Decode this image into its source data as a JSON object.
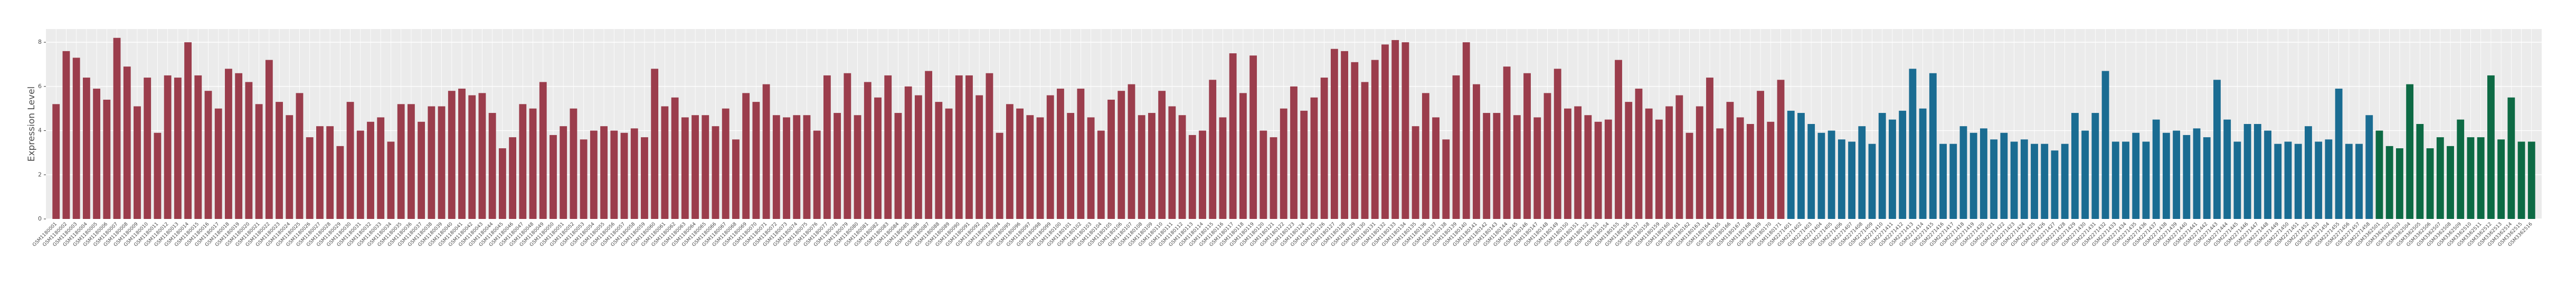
{
  "chart_data": {
    "type": "bar",
    "y_label": "Expression Level",
    "ylim": [
      0,
      8.6
    ],
    "yticks": [
      0,
      2,
      4,
      6,
      8
    ],
    "grid": true,
    "series": [
      {
        "color": "#9b3d4c",
        "categories": [
          "GSM1180001",
          "GSM1180002",
          "GSM1180003",
          "GSM1180004",
          "GSM1180005",
          "GSM1180006",
          "GSM1180007",
          "GSM1180008",
          "GSM1180009",
          "GSM1180010",
          "GSM1180011",
          "GSM1180012",
          "GSM1180013",
          "GSM1180014",
          "GSM1180015",
          "GSM1180016",
          "GSM1180017",
          "GSM1180018",
          "GSM1180019",
          "GSM1180020",
          "GSM1180021",
          "GSM1180022",
          "GSM1180023",
          "GSM1180024",
          "GSM1180025",
          "GSM1180026",
          "GSM1180027",
          "GSM1180028",
          "GSM1180029",
          "GSM1180030",
          "GSM1180031",
          "GSM1180032",
          "GSM1180033",
          "GSM1180034",
          "GSM1180035",
          "GSM1180036",
          "GSM1180037",
          "GSM1180038",
          "GSM1180039",
          "GSM1180040",
          "GSM1180041",
          "GSM1180042",
          "GSM1180043",
          "GSM1180044",
          "GSM1180045",
          "GSM1180046",
          "GSM1180047",
          "GSM1180048",
          "GSM1180049",
          "GSM1180050",
          "GSM1180051",
          "GSM1180052",
          "GSM1180053",
          "GSM1180054",
          "GSM1180055",
          "GSM1180056",
          "GSM1180057",
          "GSM1180058",
          "GSM1180059",
          "GSM1180060",
          "GSM1180061",
          "GSM1180062",
          "GSM1180063",
          "GSM1180064",
          "GSM1180065",
          "GSM1180066",
          "GSM1180067",
          "GSM1180068",
          "GSM1180069",
          "GSM1180070",
          "GSM1180071",
          "GSM1180072",
          "GSM1180073",
          "GSM1180074",
          "GSM1180075",
          "GSM1180076",
          "GSM1180077",
          "GSM1180078",
          "GSM1180079",
          "GSM1180080",
          "GSM1180081",
          "GSM1180082",
          "GSM1180083",
          "GSM1180084",
          "GSM1180085",
          "GSM1180086",
          "GSM1180087",
          "GSM1180088",
          "GSM1180089",
          "GSM1180090",
          "GSM1180091",
          "GSM1180092",
          "GSM1180093",
          "GSM1180094",
          "GSM1180095",
          "GSM1180096",
          "GSM1180097",
          "GSM1180098",
          "GSM1180099",
          "GSM1180100",
          "GSM1180101",
          "GSM1180102",
          "GSM1180103",
          "GSM1180104",
          "GSM1180105",
          "GSM1180106",
          "GSM1180107",
          "GSM1180108",
          "GSM1180109",
          "GSM1180110",
          "GSM1180111",
          "GSM1180112",
          "GSM1180113",
          "GSM1180114",
          "GSM1180115",
          "GSM1180116",
          "GSM1180117",
          "GSM1180118",
          "GSM1180119",
          "GSM1180120",
          "GSM1180121",
          "GSM1180122",
          "GSM1180123",
          "GSM1180124",
          "GSM1180125",
          "GSM1180126",
          "GSM1180127",
          "GSM1180128",
          "GSM1180129",
          "GSM1180130",
          "GSM1180131",
          "GSM1180132",
          "GSM1180133",
          "GSM1180134",
          "GSM1180135",
          "GSM1180136",
          "GSM1180137",
          "GSM1180138",
          "GSM1180139",
          "GSM1180140",
          "GSM1180141",
          "GSM1180142",
          "GSM1180143",
          "GSM1180144",
          "GSM1180145",
          "GSM1180146",
          "GSM1180147",
          "GSM1180148",
          "GSM1180149",
          "GSM1180150",
          "GSM1180151",
          "GSM1180152",
          "GSM1180153",
          "GSM1180154",
          "GSM1180155",
          "GSM1180156",
          "GSM1180157",
          "GSM1180158",
          "GSM1180159",
          "GSM1180160",
          "GSM1180161",
          "GSM1180162",
          "GSM1180163",
          "GSM1180164",
          "GSM1180165",
          "GSM1180166",
          "GSM1180167",
          "GSM1180168",
          "GSM1180169",
          "GSM1180170",
          "GSM1180171"
        ],
        "values": [
          5.2,
          7.6,
          7.3,
          6.4,
          5.9,
          5.4,
          8.2,
          6.9,
          5.1,
          6.4,
          3.9,
          6.5,
          6.4,
          8.0,
          6.5,
          5.8,
          5.0,
          6.8,
          6.6,
          6.2,
          5.2,
          7.2,
          5.3,
          4.7,
          5.7,
          3.7,
          4.2,
          4.2,
          3.3,
          5.3,
          4.0,
          4.4,
          4.6,
          3.5,
          5.2,
          5.2,
          4.4,
          5.1,
          5.1,
          5.8,
          5.9,
          5.6,
          5.7,
          4.8,
          3.2,
          3.7,
          5.2,
          5.0,
          6.2,
          3.8,
          4.2,
          5.0,
          3.6,
          4.0,
          4.2,
          4.0,
          3.9,
          4.1,
          3.7,
          6.8,
          5.1,
          5.5,
          4.6,
          4.7,
          4.7,
          4.2,
          5.0,
          3.6,
          5.7,
          5.3,
          6.1,
          4.7,
          4.6,
          4.7,
          4.7,
          4.0,
          6.5,
          4.8,
          6.6,
          4.7,
          6.2,
          5.5,
          6.5,
          4.8,
          6.0,
          5.6,
          6.7,
          5.3,
          5.0,
          6.5,
          6.5,
          5.6,
          6.6,
          3.9,
          5.2,
          5.0,
          4.7,
          4.6,
          5.6,
          5.9,
          4.8,
          5.9,
          4.6,
          4.0,
          5.4,
          5.8,
          6.1,
          4.7,
          4.8,
          5.8,
          5.1,
          4.7,
          3.8,
          4.0,
          6.3,
          4.6,
          7.5,
          5.7,
          7.4,
          4.0,
          3.7,
          5.0,
          6.0,
          4.9,
          5.5,
          6.4,
          7.7,
          7.6,
          7.1,
          6.2,
          7.2,
          7.9,
          8.1,
          8.0,
          4.2,
          5.7,
          4.6,
          3.6,
          6.5,
          8.0,
          6.1,
          4.8,
          4.8,
          6.9,
          4.7,
          6.6,
          4.6,
          5.7,
          6.8,
          5.0,
          5.1,
          4.7,
          4.4,
          4.5,
          7.2,
          5.3,
          5.9,
          5.0,
          4.5,
          5.1,
          5.6,
          3.9,
          5.1,
          6.4,
          4.1,
          5.3,
          4.6,
          4.3,
          5.8,
          4.4,
          6.3
        ]
      },
      {
        "color": "#1a6c92",
        "categories": [
          "GSM2271401",
          "GSM2271402",
          "GSM2271403",
          "GSM2271404",
          "GSM2271405",
          "GSM2271406",
          "GSM2271407",
          "GSM2271408",
          "GSM2271409",
          "GSM2271410",
          "GSM2271411",
          "GSM2271412",
          "GSM2271413",
          "GSM2271414",
          "GSM2271415",
          "GSM2271416",
          "GSM2271417",
          "GSM2271418",
          "GSM2271419",
          "GSM2271420",
          "GSM2271421",
          "GSM2271422",
          "GSM2271423",
          "GSM2271424",
          "GSM2271425",
          "GSM2271426",
          "GSM2271427",
          "GSM2271428",
          "GSM2271429",
          "GSM2271430",
          "GSM2271431",
          "GSM2271432",
          "GSM2271433",
          "GSM2271434",
          "GSM2271435",
          "GSM2271436",
          "GSM2271437",
          "GSM2271438",
          "GSM2271439",
          "GSM2271440",
          "GSM2271441",
          "GSM2271442",
          "GSM2271443",
          "GSM2271444",
          "GSM2271445",
          "GSM2271446",
          "GSM2271447",
          "GSM2271448",
          "GSM2271449",
          "GSM2271450",
          "GSM2271451",
          "GSM2271452",
          "GSM2271453",
          "GSM2271454",
          "GSM2271455",
          "GSM2271456",
          "GSM2271457",
          "GSM2271458"
        ],
        "values": [
          4.9,
          4.8,
          4.3,
          3.9,
          4.0,
          3.6,
          3.5,
          4.2,
          3.4,
          4.8,
          4.5,
          4.9,
          6.8,
          5.0,
          6.6,
          3.4,
          3.4,
          4.2,
          3.9,
          4.1,
          3.6,
          3.9,
          3.5,
          3.6,
          3.4,
          3.4,
          3.1,
          3.4,
          4.8,
          4.0,
          4.8,
          6.7,
          3.5,
          3.5,
          3.9,
          3.5,
          4.5,
          3.9,
          4.0,
          3.8,
          4.1,
          3.7,
          6.3,
          4.5,
          3.5,
          4.3,
          4.3,
          4.0,
          3.4,
          3.5,
          3.4,
          4.2,
          3.5,
          3.6,
          5.9,
          3.4,
          3.4,
          4.7
        ]
      },
      {
        "color": "#0d6a44",
        "categories": [
          "GSM3362501",
          "GSM3362502",
          "GSM3362503",
          "GSM3362504",
          "GSM3362505",
          "GSM3362506",
          "GSM3362507",
          "GSM3362508",
          "GSM3362509",
          "GSM3362510",
          "GSM3362511",
          "GSM3362512",
          "GSM3362513",
          "GSM3362514",
          "GSM3362515",
          "GSM3362516"
        ],
        "values": [
          4.0,
          3.3,
          3.2,
          6.1,
          4.3,
          3.2,
          3.7,
          3.3,
          4.5,
          3.7,
          3.7,
          6.5,
          3.6,
          5.5,
          3.5,
          3.5
        ]
      }
    ]
  }
}
